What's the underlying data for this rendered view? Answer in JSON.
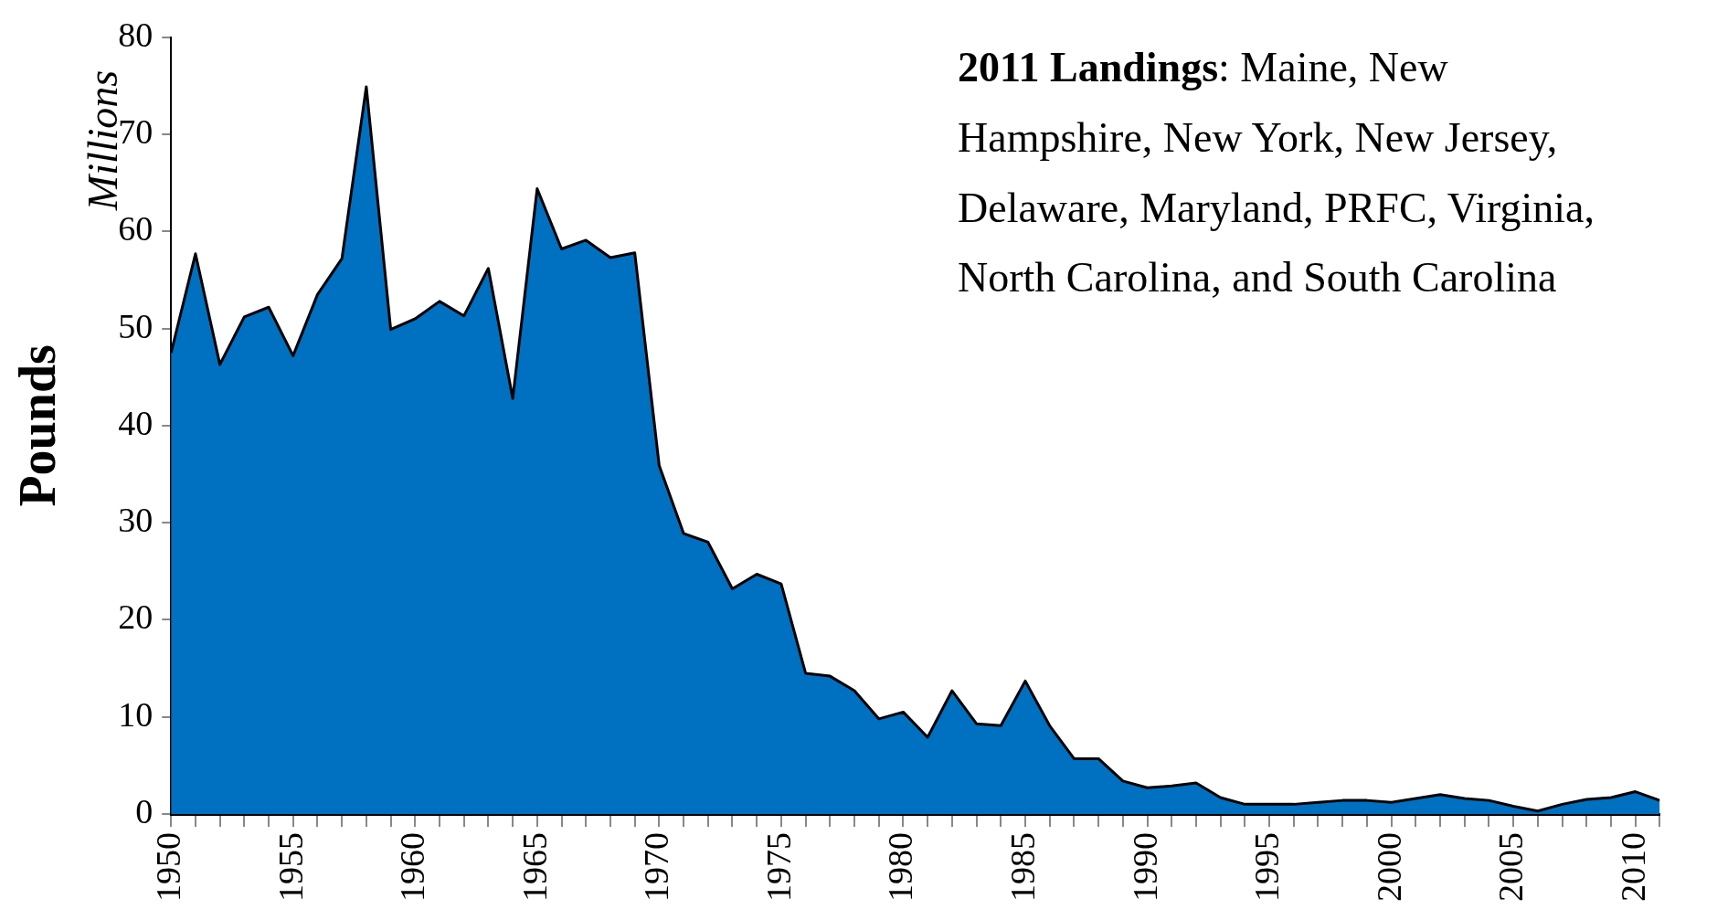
{
  "chart_data": {
    "type": "area",
    "ylabel": "Pounds",
    "annotations": [
      "Millions",
      "2011 Landings: Maine, New Hampshire, New York, New Jersey, Delaware, Maryland, PRFC, Virginia, North Carolina, and South Carolina"
    ],
    "x": [
      1950,
      1951,
      1952,
      1953,
      1954,
      1955,
      1956,
      1957,
      1958,
      1959,
      1960,
      1961,
      1962,
      1963,
      1964,
      1965,
      1966,
      1967,
      1968,
      1969,
      1970,
      1971,
      1972,
      1973,
      1974,
      1975,
      1976,
      1977,
      1978,
      1979,
      1980,
      1981,
      1982,
      1983,
      1984,
      1985,
      1986,
      1987,
      1988,
      1989,
      1990,
      1991,
      1992,
      1993,
      1994,
      1995,
      1996,
      1997,
      1998,
      1999,
      2000,
      2001,
      2002,
      2003,
      2004,
      2005,
      2006,
      2007,
      2008,
      2009,
      2010,
      2011
    ],
    "series": [
      {
        "color": "#0070c0",
        "values": [
          47.5,
          57.7,
          46.3,
          51.2,
          52.2,
          47.2,
          53.5,
          57.2,
          74.9,
          49.9,
          51.0,
          52.8,
          51.3,
          56.2,
          42.8,
          64.4,
          58.2,
          59.1,
          57.3,
          57.8,
          35.9,
          28.9,
          28.0,
          23.2,
          24.7,
          23.7,
          14.5,
          14.2,
          12.7,
          9.8,
          10.5,
          7.9,
          12.7,
          9.3,
          9.1,
          13.7,
          9.1,
          5.7,
          5.7,
          3.4,
          2.7,
          2.9,
          3.2,
          1.7,
          1.0,
          1.0,
          1.0,
          1.2,
          1.4,
          1.4,
          1.2,
          1.6,
          2.0,
          1.6,
          1.4,
          0.8,
          0.3,
          1.0,
          1.5,
          1.7,
          2.3,
          1.4
        ]
      }
    ],
    "xlim": [
      1950,
      2011
    ],
    "xticks": [
      1950,
      {
        "value": 1951,
        "label": null
      },
      {
        "value": 1952,
        "label": null
      },
      {
        "value": 1953,
        "label": null
      },
      {
        "value": 1954,
        "label": null
      },
      1955,
      {
        "value": 1956,
        "label": null
      },
      {
        "value": 1957,
        "label": null
      },
      {
        "value": 1958,
        "label": null
      },
      {
        "value": 1959,
        "label": null
      },
      1960,
      {
        "value": 1961,
        "label": null
      },
      {
        "value": 1962,
        "label": null
      },
      {
        "value": 1963,
        "label": null
      },
      {
        "value": 1964,
        "label": null
      },
      1965,
      {
        "value": 1966,
        "label": null
      },
      {
        "value": 1967,
        "label": null
      },
      {
        "value": 1968,
        "label": null
      },
      {
        "value": 1969,
        "label": null
      },
      1970,
      {
        "value": 1971,
        "label": null
      },
      {
        "value": 1972,
        "label": null
      },
      {
        "value": 1973,
        "label": null
      },
      {
        "value": 1974,
        "label": null
      },
      1975,
      {
        "value": 1976,
        "label": null
      },
      {
        "value": 1977,
        "label": null
      },
      {
        "value": 1978,
        "label": null
      },
      {
        "value": 1979,
        "label": null
      },
      1980,
      {
        "value": 1981,
        "label": null
      },
      {
        "value": 1982,
        "label": null
      },
      {
        "value": 1983,
        "label": null
      },
      {
        "value": 1984,
        "label": null
      },
      1985,
      {
        "value": 1986,
        "label": null
      },
      {
        "value": 1987,
        "label": null
      },
      {
        "value": 1988,
        "label": null
      },
      {
        "value": 1989,
        "label": null
      },
      1990,
      {
        "value": 1991,
        "label": null
      },
      {
        "value": 1992,
        "label": null
      },
      {
        "value": 1993,
        "label": null
      },
      {
        "value": 1994,
        "label": null
      },
      1995,
      {
        "value": 1996,
        "label": null
      },
      {
        "value": 1997,
        "label": null
      },
      {
        "value": 1998,
        "label": null
      },
      {
        "value": 1999,
        "label": null
      },
      2000,
      {
        "value": 2001,
        "label": null
      },
      {
        "value": 2002,
        "label": null
      },
      {
        "value": 2003,
        "label": null
      },
      {
        "value": 2004,
        "label": null
      },
      2005,
      {
        "value": 2006,
        "label": null
      },
      {
        "value": 2007,
        "label": null
      },
      {
        "value": 2008,
        "label": null
      },
      {
        "value": 2009,
        "label": null
      },
      2010,
      {
        "value": 2011,
        "label": null
      }
    ],
    "ylim": [
      0,
      80
    ],
    "yticks": [
      0,
      10,
      20,
      30,
      40,
      50,
      60,
      70,
      80
    ],
    "grid": false,
    "legend": false,
    "marker": "none"
  }
}
